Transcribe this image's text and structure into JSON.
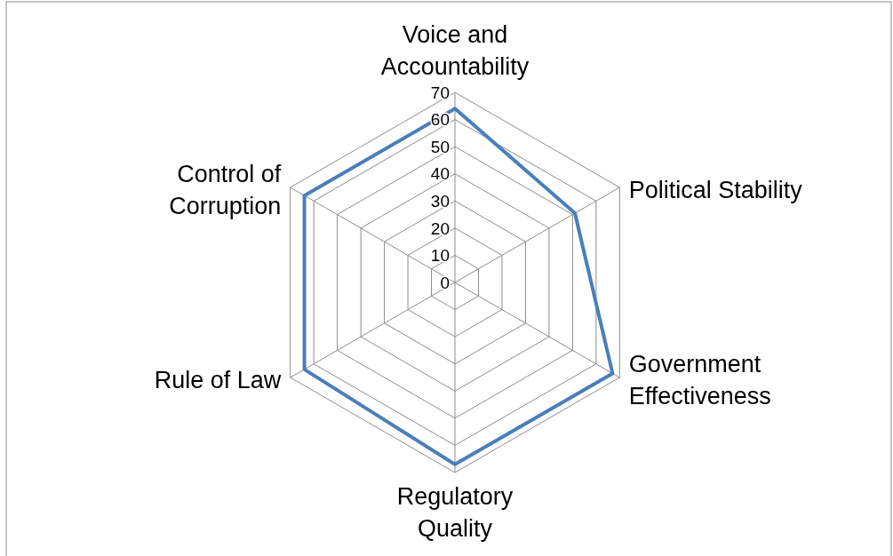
{
  "chart_data": {
    "type": "radar",
    "categories": [
      "Voice and Accountability",
      "Political Stability",
      "Government Effectiveness",
      "Regulatory Quality",
      "Rule of Law",
      "Control of Corruption"
    ],
    "series": [
      {
        "color": "#4a7ebb",
        "values": [
          64,
          51,
          67,
          67,
          64,
          64
        ]
      }
    ],
    "ylim": [
      0,
      70
    ],
    "yticks": [
      0,
      10,
      20,
      30,
      40,
      50,
      60,
      70
    ],
    "grid": true
  }
}
